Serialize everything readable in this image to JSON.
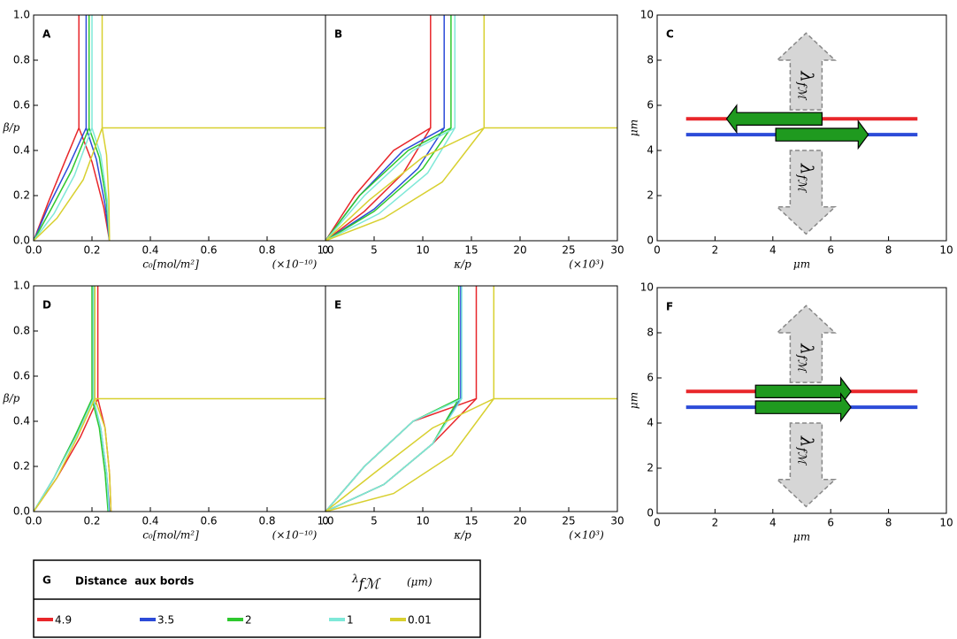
{
  "chart_data": [
    {
      "type": "line",
      "panel_label": "A",
      "xlabel": "c₀[mol/m²]",
      "xscale_label": "(×10⁻¹⁰)",
      "ylabel": "β/p",
      "xlim": [
        0,
        1
      ],
      "ylim": [
        0,
        1
      ],
      "xticks": [
        {
          "value": 0,
          "label": "0.0"
        },
        0.2,
        0.4,
        0.6,
        0.8,
        {
          "value": 1,
          "label": "1.0"
        }
      ],
      "yticks": [
        {
          "value": 0,
          "label": "0.0"
        },
        0.2,
        0.4,
        0.6,
        0.8,
        {
          "value": 1,
          "label": "1.0"
        }
      ],
      "series": [
        {
          "name": "4.9",
          "color": "#e8262a",
          "x": [
            0,
            0.05,
            0.11,
            0.155,
            0.155,
            null,
            0.26,
            0.24,
            0.2,
            0.155
          ],
          "values": [
            0,
            0.17,
            0.36,
            0.5,
            1,
            null,
            0,
            0.15,
            0.35,
            0.5
          ]
        },
        {
          "name": "3.5",
          "color": "#2c4bd8",
          "x": [
            0,
            0.05,
            0.12,
            0.18,
            0.18,
            null,
            0.26,
            0.245,
            0.215,
            0.18
          ],
          "values": [
            0,
            0.15,
            0.33,
            0.5,
            1,
            null,
            0,
            0.16,
            0.36,
            0.5
          ]
        },
        {
          "name": "2",
          "color": "#2ec82e",
          "x": [
            0,
            0.06,
            0.13,
            0.19,
            0.19,
            null,
            0.26,
            0.25,
            0.225,
            0.19
          ],
          "values": [
            0,
            0.14,
            0.31,
            0.5,
            1,
            null,
            0,
            0.17,
            0.37,
            0.5
          ]
        },
        {
          "name": "1",
          "color": "#7fe8d8",
          "x": [
            0,
            0.07,
            0.14,
            0.2,
            0.2,
            null,
            0.26,
            0.252,
            0.23,
            0.2
          ],
          "values": [
            0,
            0.12,
            0.29,
            0.5,
            1,
            null,
            0,
            0.18,
            0.38,
            0.5
          ]
        },
        {
          "name": "0.01",
          "color": "#d8d030",
          "x": [
            0,
            0.08,
            0.17,
            0.235,
            0.235,
            null,
            0.26,
            0.258,
            0.25,
            0.235,
            null,
            0.235,
            1
          ],
          "values": [
            0,
            0.1,
            0.27,
            0.5,
            1,
            null,
            0,
            0.18,
            0.38,
            0.5,
            null,
            0.5,
            0.5
          ]
        }
      ]
    },
    {
      "type": "line",
      "panel_label": "B",
      "xlabel": "κ/p",
      "xscale_label": "(×10³)",
      "xlim": [
        0,
        30
      ],
      "ylim": [
        0,
        1
      ],
      "xticks": [
        0,
        5,
        10,
        15,
        20,
        25,
        30
      ],
      "series": [
        {
          "color": "#e8262a",
          "x": [
            0,
            3,
            7,
            10.8,
            10.8,
            null,
            0,
            4,
            8,
            10.8
          ],
          "values": [
            0,
            0.2,
            0.4,
            0.5,
            1,
            null,
            0,
            0.13,
            0.3,
            0.5
          ]
        },
        {
          "color": "#2c4bd8",
          "x": [
            0,
            3.5,
            8,
            12.2,
            12.2,
            null,
            0,
            5,
            9.5,
            12.2
          ],
          "values": [
            0,
            0.2,
            0.4,
            0.5,
            1,
            null,
            0,
            0.14,
            0.32,
            0.5
          ]
        },
        {
          "color": "#2ec82e",
          "x": [
            0,
            3.5,
            8.5,
            12.9,
            12.9,
            null,
            0,
            5,
            10,
            12.9
          ],
          "values": [
            0,
            0.2,
            0.4,
            0.5,
            1,
            null,
            0,
            0.13,
            0.32,
            0.5
          ]
        },
        {
          "color": "#7fe8d8",
          "x": [
            0,
            4,
            9,
            13.3,
            13.3,
            null,
            0,
            5.5,
            10.5,
            13.3
          ],
          "values": [
            0,
            0.2,
            0.4,
            0.5,
            1,
            null,
            0,
            0.12,
            0.3,
            0.5
          ]
        },
        {
          "color": "#d8d030",
          "x": [
            0,
            4.5,
            10,
            16.3,
            16.3,
            null,
            0,
            6,
            12,
            16.3,
            null,
            16.3,
            30
          ],
          "values": [
            0,
            0.18,
            0.37,
            0.5,
            1,
            null,
            0,
            0.1,
            0.26,
            0.5,
            null,
            0.5,
            0.5
          ]
        }
      ]
    },
    {
      "type": "line",
      "panel_label": "C",
      "xlabel": "μm",
      "ylabel": "μm",
      "arrow_symbol": "λ",
      "arrow_subscript": "fℳ",
      "xlim": [
        0,
        10
      ],
      "ylim": [
        0,
        10
      ],
      "xticks": [
        0,
        2,
        4,
        6,
        8,
        10
      ],
      "yticks": [
        0,
        2,
        4,
        6,
        8,
        10
      ],
      "series": [
        {
          "color": "#e8262a",
          "x": [
            1,
            9
          ],
          "values": [
            5.4,
            5.4
          ]
        },
        {
          "color": "#2c4bd8",
          "x": [
            1,
            9
          ],
          "values": [
            4.7,
            4.7
          ]
        }
      ]
    },
    {
      "type": "line",
      "panel_label": "D",
      "xlabel": "c₀[mol/m²]",
      "xscale_label": "(×10⁻¹⁰)",
      "ylabel": "β/p",
      "xlim": [
        0,
        1
      ],
      "ylim": [
        0,
        1
      ],
      "xticks": [
        {
          "value": 0,
          "label": "0.0"
        },
        0.2,
        0.4,
        0.6,
        0.8,
        {
          "value": 1,
          "label": "1.0"
        }
      ],
      "yticks": [
        {
          "value": 0,
          "label": "0.0"
        },
        0.2,
        0.4,
        0.6,
        0.8,
        {
          "value": 1,
          "label": "1.0"
        }
      ],
      "series": [
        {
          "color": "#e8262a",
          "x": [
            0,
            0.08,
            0.16,
            0.22,
            0.22,
            null,
            0.265,
            0.26,
            0.245,
            0.22
          ],
          "values": [
            0,
            0.15,
            0.33,
            0.5,
            1,
            null,
            0,
            0.17,
            0.37,
            0.5
          ]
        },
        {
          "color": "#2c4bd8",
          "x": [
            0,
            0.07,
            0.14,
            0.205,
            0.205,
            null,
            0.26,
            0.25,
            0.23,
            0.205
          ],
          "values": [
            0,
            0.15,
            0.33,
            0.5,
            1,
            null,
            0,
            0.17,
            0.37,
            0.5
          ]
        },
        {
          "color": "#2ec82e",
          "x": [
            0,
            0.07,
            0.14,
            0.2,
            0.2,
            null,
            0.255,
            0.245,
            0.225,
            0.2
          ],
          "values": [
            0,
            0.15,
            0.33,
            0.5,
            1,
            null,
            0,
            0.17,
            0.37,
            0.5
          ]
        },
        {
          "color": "#7fe8d8",
          "x": [
            0,
            0.07,
            0.145,
            0.205,
            0.205,
            null,
            0.258,
            0.25,
            0.23,
            0.205
          ],
          "values": [
            0,
            0.15,
            0.33,
            0.5,
            1,
            null,
            0,
            0.17,
            0.37,
            0.5
          ]
        },
        {
          "color": "#d8d030",
          "x": [
            0,
            0.08,
            0.15,
            0.21,
            0.21,
            null,
            0.265,
            0.26,
            0.245,
            0.21,
            null,
            0.21,
            1
          ],
          "values": [
            0,
            0.15,
            0.33,
            0.5,
            1,
            null,
            0,
            0.17,
            0.37,
            0.5,
            null,
            0.5,
            0.5
          ]
        }
      ]
    },
    {
      "type": "line",
      "panel_label": "E",
      "xlabel": "κ/p",
      "xscale_label": "(×10³)",
      "xlim": [
        0,
        30
      ],
      "ylim": [
        0,
        1
      ],
      "xticks": [
        0,
        5,
        10,
        15,
        20,
        25,
        30
      ],
      "series": [
        {
          "color": "#e8262a",
          "x": [
            0,
            4,
            9,
            15.5,
            15.5,
            null,
            0,
            6,
            11,
            15.5
          ],
          "values": [
            0,
            0.2,
            0.4,
            0.5,
            1,
            null,
            0,
            0.12,
            0.3,
            0.5
          ]
        },
        {
          "color": "#2c4bd8",
          "x": [
            0,
            4,
            9,
            13.9,
            13.9,
            null,
            0,
            6,
            11,
            13.9
          ],
          "values": [
            0,
            0.2,
            0.4,
            0.5,
            1,
            null,
            0,
            0.12,
            0.3,
            0.5
          ]
        },
        {
          "color": "#2ec82e",
          "x": [
            0,
            4,
            9,
            13.7,
            13.7,
            null,
            0,
            6,
            11,
            13.7
          ],
          "values": [
            0,
            0.2,
            0.4,
            0.5,
            1,
            null,
            0,
            0.12,
            0.3,
            0.5
          ]
        },
        {
          "color": "#7fe8d8",
          "x": [
            0,
            4,
            9,
            14,
            14,
            null,
            0,
            6,
            11,
            14
          ],
          "values": [
            0,
            0.2,
            0.4,
            0.5,
            1,
            null,
            0,
            0.12,
            0.3,
            0.5
          ]
        },
        {
          "color": "#d8d030",
          "x": [
            0,
            5,
            11,
            17.3,
            17.3,
            null,
            0,
            7,
            13,
            17.3,
            null,
            17.3,
            30
          ],
          "values": [
            0,
            0.17,
            0.37,
            0.5,
            1,
            null,
            0,
            0.08,
            0.25,
            0.5,
            null,
            0.5,
            0.5
          ]
        }
      ]
    },
    {
      "type": "line",
      "panel_label": "F",
      "xlabel": "μm",
      "ylabel": "μm",
      "arrow_symbol": "λ",
      "arrow_subscript": "fℳ",
      "xlim": [
        0,
        10
      ],
      "ylim": [
        0,
        10
      ],
      "xticks": [
        0,
        2,
        4,
        6,
        8,
        10
      ],
      "yticks": [
        0,
        2,
        4,
        6,
        8,
        10
      ],
      "series": [
        {
          "color": "#e8262a",
          "x": [
            1,
            9
          ],
          "values": [
            5.4,
            5.4
          ]
        },
        {
          "color": "#2c4bd8",
          "x": [
            1,
            9
          ],
          "values": [
            4.7,
            4.7
          ]
        }
      ]
    }
  ],
  "legend": {
    "label": "G",
    "title": "Distance  aux bords",
    "symbol": "λ",
    "subscript": "fℳ",
    "unit": "(μm)"
  }
}
